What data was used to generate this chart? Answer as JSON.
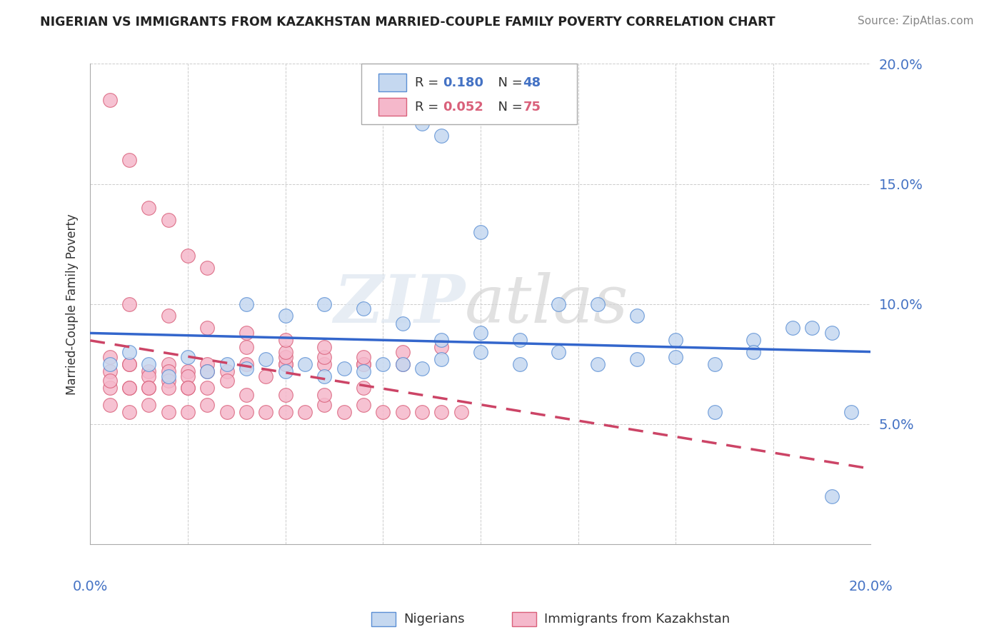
{
  "title": "NIGERIAN VS IMMIGRANTS FROM KAZAKHSTAN MARRIED-COUPLE FAMILY POVERTY CORRELATION CHART",
  "source": "Source: ZipAtlas.com",
  "ylabel": "Married-Couple Family Poverty",
  "xlim": [
    0.0,
    0.2
  ],
  "ylim": [
    0.0,
    0.2
  ],
  "blue_color": "#c5d8f0",
  "pink_color": "#f5b8cb",
  "blue_edge_color": "#5b8fd4",
  "pink_edge_color": "#d9607a",
  "blue_line_color": "#3366cc",
  "pink_line_color": "#cc4466",
  "nig_r": 0.18,
  "nig_n": 48,
  "kaz_r": 0.052,
  "kaz_n": 75,
  "nig_x": [
    0.005,
    0.01,
    0.015,
    0.02,
    0.025,
    0.03,
    0.035,
    0.04,
    0.045,
    0.05,
    0.055,
    0.06,
    0.065,
    0.07,
    0.075,
    0.08,
    0.085,
    0.09,
    0.1,
    0.11,
    0.12,
    0.13,
    0.14,
    0.15,
    0.16,
    0.17,
    0.18,
    0.19,
    0.04,
    0.05,
    0.06,
    0.07,
    0.08,
    0.09,
    0.1,
    0.11,
    0.085,
    0.09,
    0.12,
    0.13,
    0.14,
    0.15,
    0.16,
    0.17,
    0.185,
    0.19,
    0.195,
    0.1
  ],
  "nig_y": [
    0.075,
    0.08,
    0.075,
    0.07,
    0.078,
    0.072,
    0.075,
    0.073,
    0.077,
    0.072,
    0.075,
    0.07,
    0.073,
    0.072,
    0.075,
    0.075,
    0.073,
    0.077,
    0.08,
    0.075,
    0.08,
    0.075,
    0.077,
    0.078,
    0.075,
    0.085,
    0.09,
    0.088,
    0.1,
    0.095,
    0.1,
    0.098,
    0.092,
    0.085,
    0.088,
    0.085,
    0.175,
    0.17,
    0.1,
    0.1,
    0.095,
    0.085,
    0.055,
    0.08,
    0.09,
    0.02,
    0.055,
    0.13
  ],
  "kaz_x": [
    0.005,
    0.01,
    0.015,
    0.02,
    0.025,
    0.03,
    0.005,
    0.01,
    0.015,
    0.02,
    0.025,
    0.03,
    0.005,
    0.01,
    0.015,
    0.02,
    0.025,
    0.03,
    0.035,
    0.04,
    0.045,
    0.05,
    0.005,
    0.01,
    0.015,
    0.02,
    0.025,
    0.005,
    0.01,
    0.015,
    0.02,
    0.025,
    0.03,
    0.035,
    0.005,
    0.01,
    0.015,
    0.02,
    0.025,
    0.03,
    0.035,
    0.04,
    0.045,
    0.05,
    0.055,
    0.06,
    0.065,
    0.07,
    0.075,
    0.08,
    0.085,
    0.09,
    0.095,
    0.05,
    0.06,
    0.07,
    0.08,
    0.05,
    0.06,
    0.07,
    0.04,
    0.05,
    0.06,
    0.07,
    0.08,
    0.09,
    0.04,
    0.05,
    0.06,
    0.07,
    0.01,
    0.02,
    0.03,
    0.04,
    0.05
  ],
  "kaz_y": [
    0.185,
    0.16,
    0.14,
    0.135,
    0.12,
    0.115,
    0.078,
    0.075,
    0.072,
    0.075,
    0.072,
    0.075,
    0.072,
    0.075,
    0.07,
    0.072,
    0.07,
    0.072,
    0.072,
    0.075,
    0.07,
    0.075,
    0.065,
    0.065,
    0.065,
    0.068,
    0.065,
    0.068,
    0.065,
    0.065,
    0.065,
    0.065,
    0.065,
    0.068,
    0.058,
    0.055,
    0.058,
    0.055,
    0.055,
    0.058,
    0.055,
    0.055,
    0.055,
    0.055,
    0.055,
    0.058,
    0.055,
    0.058,
    0.055,
    0.055,
    0.055,
    0.055,
    0.055,
    0.075,
    0.075,
    0.075,
    0.075,
    0.078,
    0.078,
    0.075,
    0.082,
    0.08,
    0.082,
    0.078,
    0.08,
    0.082,
    0.062,
    0.062,
    0.062,
    0.065,
    0.1,
    0.095,
    0.09,
    0.088,
    0.085
  ]
}
